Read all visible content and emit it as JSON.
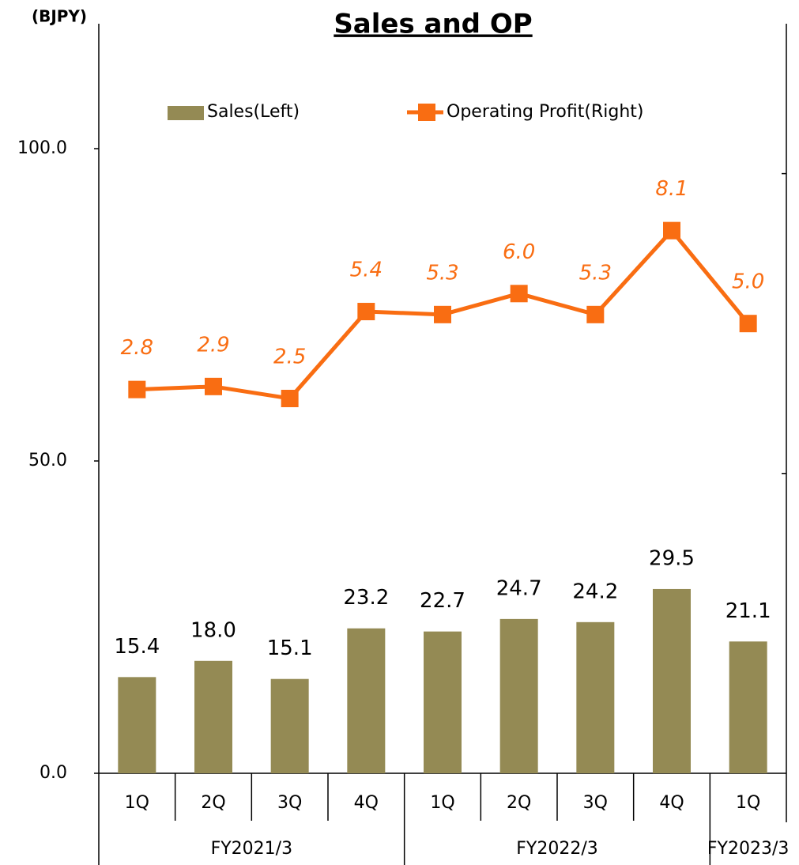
{
  "chart_data": {
    "type": "bar_line",
    "title": "Sales and OP",
    "y_unit": "(BJPY)",
    "categories": [
      "1Q",
      "2Q",
      "3Q",
      "4Q",
      "1Q",
      "2Q",
      "3Q",
      "4Q",
      "1Q"
    ],
    "category_groups": [
      "FY2021/3",
      "FY2021/3",
      "FY2021/3",
      "FY2021/3",
      "FY2022/3",
      "FY2022/3",
      "FY2022/3",
      "FY2022/3",
      "FY2023/3"
    ],
    "series": [
      {
        "name": "Sales(Left)",
        "type": "bar",
        "color": "#948a54",
        "values": [
          15.4,
          18.0,
          15.1,
          23.2,
          22.7,
          24.7,
          24.2,
          29.5,
          21.1
        ],
        "value_labels": [
          "15.4",
          "18.0",
          "15.1",
          "23.2",
          "22.7",
          "24.7",
          "24.2",
          "29.5",
          "21.1"
        ]
      },
      {
        "name": "Operating Profit(Right)",
        "type": "line",
        "axis": "y2",
        "color": "#f96d12",
        "values": [
          2.8,
          2.9,
          2.5,
          5.4,
          5.3,
          6.0,
          5.3,
          8.1,
          5.0
        ],
        "value_labels": [
          "2.8",
          "2.9",
          "2.5",
          "5.4",
          "5.3",
          "6.0",
          "5.3",
          "8.1",
          "5.0"
        ]
      }
    ],
    "ylim": [
      0,
      120
    ],
    "yticks": [
      {
        "value": 0,
        "label": "0.0"
      },
      {
        "value": 50,
        "label": "50.0"
      },
      {
        "value": 100,
        "label": "100.0"
      }
    ],
    "y2lim": [
      -10,
      15
    ],
    "y2ticks": [
      0,
      10
    ],
    "grid": false,
    "legend": "top"
  }
}
